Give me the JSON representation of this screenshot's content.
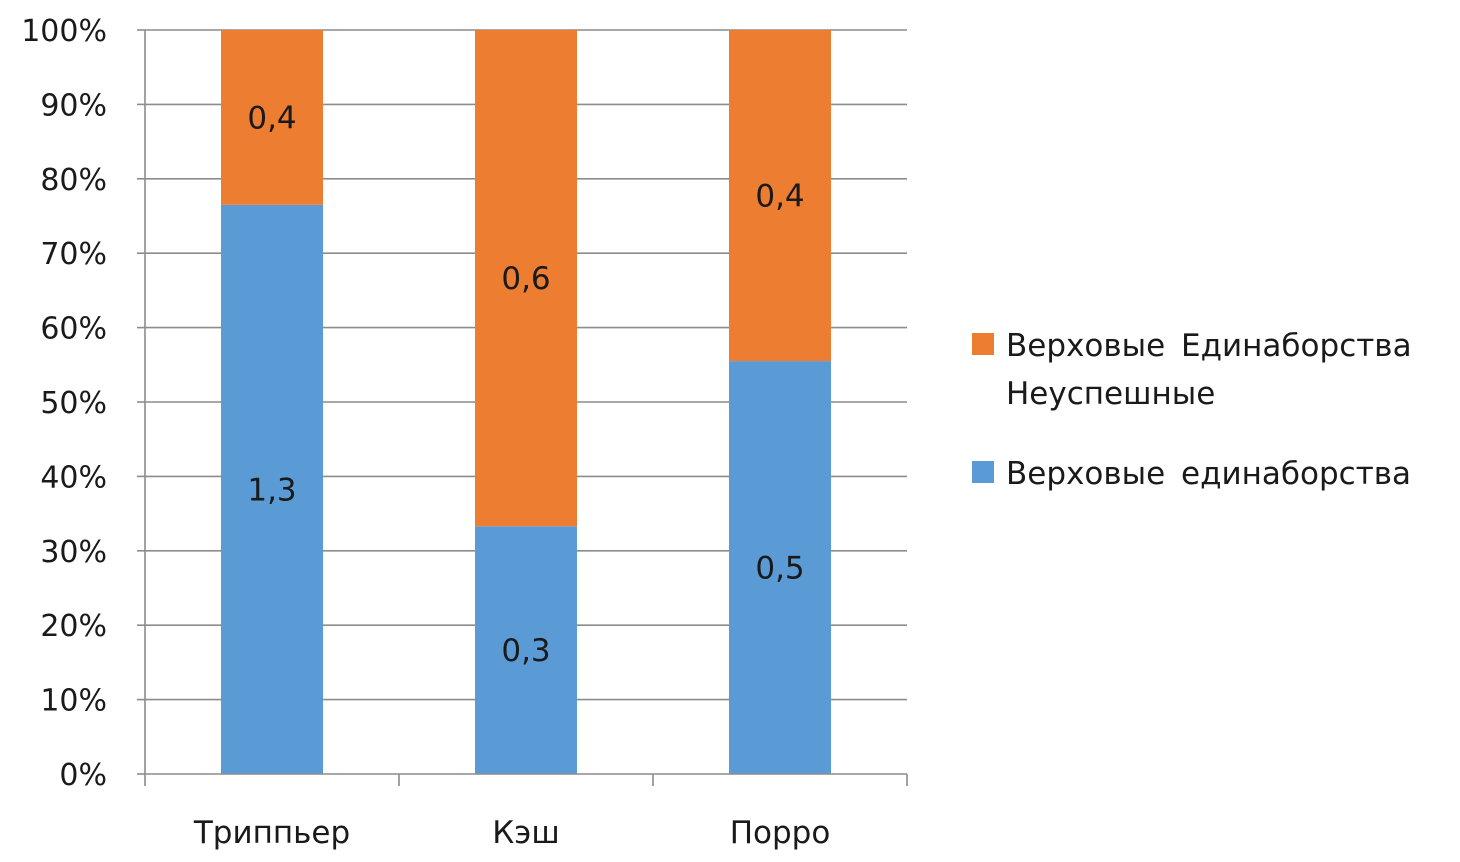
{
  "chart_data": {
    "type": "bar",
    "stacked": "percent",
    "categories": [
      "Триппьер",
      "Кэш",
      "Порро"
    ],
    "series": [
      {
        "name": "Верховые единаборства",
        "values": [
          1.3,
          0.3,
          0.5
        ],
        "labels": [
          "1,3",
          "0,3",
          "0,5"
        ],
        "color": "#5b9bd5"
      },
      {
        "name": "Верховые Единаборства Неуспешные",
        "values": [
          0.4,
          0.6,
          0.4
        ],
        "labels": [
          "0,4",
          "0,6",
          "0,4"
        ],
        "color": "#ed7d31"
      }
    ],
    "boundaries": [
      0.765,
      0.333,
      0.555
    ],
    "ylim": [
      0,
      100
    ],
    "yticks": [
      "0%",
      "10%",
      "20%",
      "30%",
      "40%",
      "50%",
      "60%",
      "70%",
      "80%",
      "90%",
      "100%"
    ],
    "grid": true,
    "legend_position": "right",
    "title": "",
    "xlabel": "",
    "ylabel": ""
  }
}
